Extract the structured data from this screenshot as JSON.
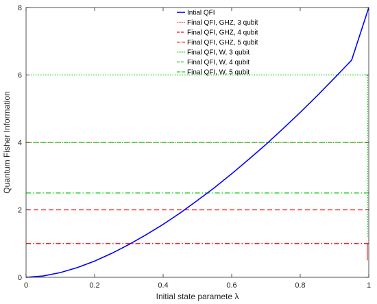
{
  "chart_data": {
    "type": "line",
    "title": "",
    "xlabel": "Initial state paramete λ",
    "ylabel": "Quantum Fisher Information",
    "xlim": [
      0,
      1
    ],
    "ylim": [
      0,
      8
    ],
    "xticks": [
      0,
      0.2,
      0.4,
      0.6,
      0.8,
      1
    ],
    "yticks": [
      0,
      2,
      4,
      6,
      8
    ],
    "xtick_labels": [
      "0",
      "0.2",
      "0.4",
      "0.6",
      "0.8",
      "1"
    ],
    "ytick_labels": [
      "0",
      "2",
      "4",
      "6",
      "8"
    ],
    "grid": false,
    "legend_position": "top-center",
    "series": [
      {
        "name": "Intial QFI",
        "color": "#0000ff",
        "style": "solid",
        "x": [
          0,
          0.05,
          0.1,
          0.15,
          0.2,
          0.25,
          0.3,
          0.35,
          0.4,
          0.45,
          0.5,
          0.55,
          0.6,
          0.65,
          0.7,
          0.75,
          0.8,
          0.85,
          0.9,
          0.95,
          1.0
        ],
        "y": [
          0,
          0.04,
          0.14,
          0.29,
          0.48,
          0.71,
          0.97,
          1.26,
          1.57,
          1.91,
          2.28,
          2.66,
          3.07,
          3.5,
          3.94,
          4.41,
          4.89,
          5.39,
          5.91,
          6.44,
          8.0
        ]
      },
      {
        "name": "Final QFI, GHZ, 3 qubit",
        "color": "#e02020",
        "style": "dotted",
        "x": [
          0,
          1
        ],
        "y": [
          4,
          4
        ]
      },
      {
        "name": "Final QFI, GHZ, 4 qubit",
        "color": "#ff0000",
        "style": "dashed",
        "x": [
          0,
          1
        ],
        "y": [
          2,
          2
        ]
      },
      {
        "name": "Final QFI, GHZ, 5 qubit",
        "color": "#ff0000",
        "style": "dashdot",
        "x": [
          0,
          1
        ],
        "y": [
          1,
          1
        ]
      },
      {
        "name": "Final QFI, W, 3 qubit",
        "color": "#00cc00",
        "style": "dotted",
        "x": [
          0,
          1
        ],
        "y": [
          6,
          6
        ]
      },
      {
        "name": "Final QFI, W, 4 qubit",
        "color": "#00cc00",
        "style": "dashed",
        "x": [
          0,
          1
        ],
        "y": [
          4,
          4
        ]
      },
      {
        "name": "Final QFI, W, 5 qubit",
        "color": "#00cc00",
        "style": "dashdot",
        "x": [
          0,
          1
        ],
        "y": [
          2.5,
          2.5
        ]
      }
    ]
  }
}
